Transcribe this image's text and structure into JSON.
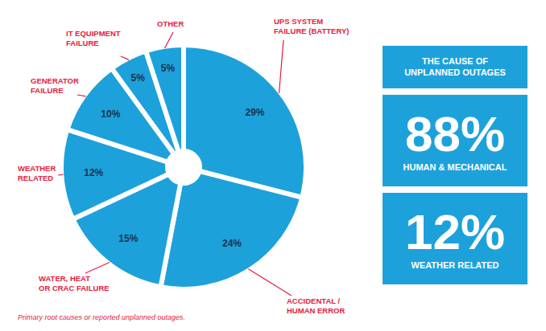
{
  "chart_data": {
    "type": "pie",
    "categories": [
      "UPS SYSTEM FAILURE (BATTERY)",
      "ACCIDENTAL / HUMAN ERROR",
      "WATER, HEAT OR CRAC FAILURE",
      "WEATHER RELATED",
      "GENERATOR FAILURE",
      "IT EQUIPMENT FAILURE",
      "OTHER"
    ],
    "values": [
      29,
      24,
      15,
      12,
      10,
      5,
      5
    ],
    "value_labels": [
      "29%",
      "24%",
      "15%",
      "12%",
      "10%",
      "5%",
      "5%"
    ],
    "data_labels": true,
    "color": "#1da1db",
    "summary": {
      "heading": "THE CAUSE OF UNPLANNED OUTAGES",
      "items": [
        {
          "value_label": "88%",
          "label": "HUMAN & MECHANICAL"
        },
        {
          "value_label": "12%",
          "label": "WEATHER RELATED"
        }
      ]
    },
    "caption": "Primary root causes or reported unplanned outages."
  }
}
